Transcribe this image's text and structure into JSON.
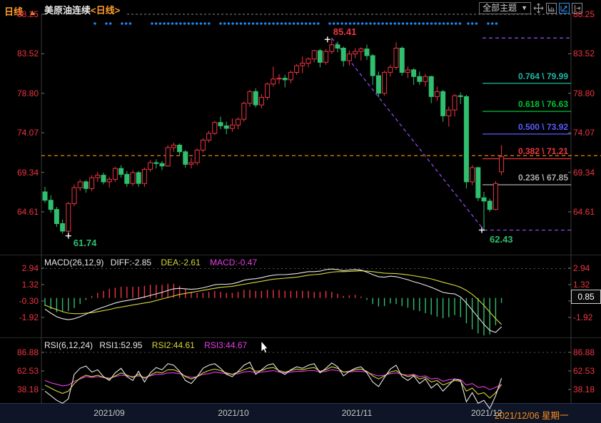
{
  "title": {
    "symbol": "美原油连续",
    "period": "<日线>"
  },
  "toolbar": {
    "themes_label": "全部主题",
    "dropdown_arrow": "▼",
    "icons": [
      "pan-icon",
      "axis-scale-icon",
      "chart-arrow-icon",
      "collapse-right-icon"
    ]
  },
  "indicators": {
    "macd_header": {
      "name": "MACD(26,12,9)",
      "diff": "DIFF:-2.85",
      "dea": "DEA:-2.61",
      "macd": "MACD:-0.47"
    },
    "rsi_header": {
      "name": "RSI(6,12,24)",
      "rsi1": "RSI1:52.95",
      "rsi2": "RSI2:44.61",
      "rsi3": "RSI3:44.67"
    },
    "macd_badge": "0.85"
  },
  "status_bar": {
    "period": "日线",
    "period_arrow": "▲",
    "months": [
      "2021/09",
      "2021/10",
      "2021/11",
      "2021/12"
    ],
    "current_date": "2021/12/06 星期一"
  },
  "annotations": {
    "peak_label": "85.41",
    "peak_price": 85.41,
    "peak_candle_index": 49,
    "low_left_label": "61.74",
    "low_left_price": 61.74,
    "low_left_candle_index": 4,
    "low_right_label": "62.43",
    "low_right_price": 62.43,
    "low_right_candle_index": 75
  },
  "colors": {
    "up": "#ef3541",
    "down": "#2fbf6e",
    "axis_text": "#ef3541",
    "diff_line": "#e8e8e8",
    "dea_line": "#d6d63c",
    "macd_text": "#ea3cea",
    "rsi1": "#e8e8e8",
    "rsi2": "#d6d63c",
    "rsi3": "#ea3cea",
    "price_line": "#ff9500",
    "fib_trend": "#9a4dff",
    "marker_dot": "#1e82e8"
  },
  "chart_data": {
    "type": "candlestick",
    "symbol": "美原油连续",
    "interval": "日线",
    "price_axis_ticks": [
      "88.25",
      "83.52",
      "78.80",
      "74.07",
      "69.34",
      "64.61"
    ],
    "macd_axis_ticks": [
      "2.94",
      "1.32",
      "-0.30",
      "-1.92"
    ],
    "rsi_axis_ticks": [
      "86.88",
      "62.53",
      "38.18"
    ],
    "current_price": 71.21,
    "fib_levels": [
      {
        "label": "0.764 \\ 79.99",
        "price": 79.99,
        "color": "#1fb5a3"
      },
      {
        "label": "0.618 \\ 76.63",
        "price": 76.63,
        "color": "#00c431"
      },
      {
        "label": "0.500 \\ 73.92",
        "price": 73.92,
        "color": "#5b5bff"
      },
      {
        "label": "0.382 \\ 71.21",
        "price": 71.21,
        "color": "#ef3541"
      },
      {
        "label": "0.236 \\ 67.85",
        "price": 67.85,
        "color": "#aaaaaa"
      }
    ],
    "marker_dot_ranges": [
      [
        133,
        133
      ],
      [
        149,
        156
      ],
      [
        171,
        186
      ],
      [
        213,
        297
      ],
      [
        309,
        450
      ],
      [
        462,
        650
      ],
      [
        656,
        669
      ],
      [
        684,
        698
      ]
    ],
    "candles": [
      [
        67.0,
        67.6,
        65.7,
        66.0
      ],
      [
        66.0,
        66.6,
        64.5,
        64.9
      ],
      [
        64.9,
        65.2,
        62.8,
        63.2
      ],
      [
        63.2,
        63.7,
        62.0,
        62.3
      ],
      [
        62.3,
        65.8,
        61.74,
        65.6
      ],
      [
        65.6,
        67.9,
        65.3,
        67.5
      ],
      [
        67.5,
        68.5,
        67.1,
        68.2
      ],
      [
        68.2,
        68.4,
        66.9,
        67.4
      ],
      [
        67.4,
        69.0,
        67.1,
        68.7
      ],
      [
        68.7,
        69.4,
        68.2,
        69.0
      ],
      [
        69.0,
        69.3,
        67.9,
        68.2
      ],
      [
        68.2,
        68.8,
        67.5,
        68.5
      ],
      [
        68.5,
        70.0,
        68.2,
        69.8
      ],
      [
        69.8,
        70.2,
        68.7,
        69.1
      ],
      [
        69.1,
        69.5,
        67.6,
        68.0
      ],
      [
        68.0,
        69.6,
        67.7,
        69.3
      ],
      [
        69.3,
        69.5,
        67.6,
        68.0
      ],
      [
        68.0,
        69.9,
        67.6,
        69.7
      ],
      [
        69.7,
        70.8,
        69.4,
        70.5
      ],
      [
        70.5,
        70.9,
        69.8,
        70.4
      ],
      [
        70.4,
        70.7,
        69.6,
        70.1
      ],
      [
        70.1,
        72.6,
        70.0,
        72.3
      ],
      [
        72.3,
        72.9,
        71.8,
        72.6
      ],
      [
        72.6,
        72.8,
        71.4,
        71.8
      ],
      [
        71.8,
        72.0,
        69.9,
        70.3
      ],
      [
        70.3,
        71.1,
        69.8,
        70.5
      ],
      [
        70.5,
        72.2,
        70.2,
        72.0
      ],
      [
        72.0,
        73.4,
        71.7,
        73.2
      ],
      [
        73.2,
        74.3,
        72.9,
        74.0
      ],
      [
        74.0,
        75.5,
        73.8,
        75.3
      ],
      [
        75.3,
        76.0,
        74.5,
        74.9
      ],
      [
        74.9,
        75.4,
        73.9,
        74.6
      ],
      [
        74.6,
        75.8,
        74.2,
        75.0
      ],
      [
        75.0,
        75.9,
        74.5,
        75.7
      ],
      [
        75.7,
        77.8,
        75.4,
        77.6
      ],
      [
        77.6,
        79.2,
        77.2,
        79.0
      ],
      [
        79.0,
        79.4,
        77.1,
        77.4
      ],
      [
        77.4,
        78.7,
        77.0,
        78.3
      ],
      [
        78.3,
        80.1,
        78.0,
        79.9
      ],
      [
        79.9,
        82.0,
        79.6,
        80.5
      ],
      [
        80.5,
        81.1,
        79.9,
        80.6
      ],
      [
        80.6,
        81.0,
        79.5,
        80.4
      ],
      [
        80.4,
        81.5,
        80.0,
        81.3
      ],
      [
        81.3,
        82.3,
        81.0,
        82.1
      ],
      [
        82.1,
        83.2,
        81.2,
        82.4
      ],
      [
        82.4,
        83.1,
        81.9,
        82.9
      ],
      [
        82.9,
        84.0,
        82.5,
        83.9
      ],
      [
        83.9,
        84.1,
        81.9,
        82.5
      ],
      [
        82.5,
        84.1,
        82.2,
        83.8
      ],
      [
        83.8,
        85.41,
        83.5,
        84.6
      ],
      [
        84.6,
        85.0,
        83.7,
        84.2
      ],
      [
        84.2,
        84.4,
        82.0,
        82.7
      ],
      [
        82.7,
        83.9,
        82.1,
        83.5
      ],
      [
        83.5,
        84.2,
        83.0,
        83.8
      ],
      [
        83.8,
        84.3,
        82.7,
        84.1
      ],
      [
        84.1,
        84.6,
        82.8,
        83.3
      ],
      [
        83.3,
        83.5,
        79.8,
        80.9
      ],
      [
        80.9,
        81.4,
        78.3,
        78.8
      ],
      [
        78.8,
        81.5,
        78.5,
        81.3
      ],
      [
        81.3,
        82.2,
        80.8,
        81.9
      ],
      [
        81.9,
        84.9,
        81.6,
        84.2
      ],
      [
        84.2,
        84.4,
        80.9,
        81.3
      ],
      [
        81.3,
        82.0,
        80.6,
        81.6
      ],
      [
        81.6,
        81.8,
        79.8,
        80.8
      ],
      [
        80.8,
        81.4,
        79.8,
        80.2
      ],
      [
        80.2,
        81.1,
        79.6,
        80.8
      ],
      [
        80.8,
        80.9,
        77.6,
        78.4
      ],
      [
        78.4,
        79.6,
        77.9,
        79.0
      ],
      [
        79.0,
        79.2,
        75.4,
        76.1
      ],
      [
        76.1,
        77.2,
        74.8,
        76.8
      ],
      [
        76.8,
        78.7,
        76.0,
        78.5
      ],
      [
        78.5,
        78.9,
        77.5,
        78.4
      ],
      [
        78.4,
        78.6,
        67.4,
        68.2
      ],
      [
        68.2,
        70.2,
        67.8,
        69.9
      ],
      [
        69.9,
        70.0,
        65.9,
        66.3
      ],
      [
        66.3,
        67.0,
        62.43,
        65.9
      ],
      [
        65.9,
        66.2,
        64.6,
        64.9
      ],
      [
        64.9,
        68.3,
        64.8,
        68.0
      ],
      [
        69.4,
        72.6,
        69.0,
        71.21
      ]
    ],
    "macd": {
      "diff": [
        -1.1,
        -1.5,
        -1.85,
        -2.05,
        -2.15,
        -2.05,
        -1.85,
        -1.6,
        -1.35,
        -1.1,
        -0.9,
        -0.7,
        -0.5,
        -0.35,
        -0.25,
        -0.15,
        -0.05,
        0.1,
        0.25,
        0.4,
        0.55,
        0.75,
        0.9,
        0.95,
        0.9,
        0.85,
        0.9,
        1.0,
        1.15,
        1.3,
        1.35,
        1.35,
        1.4,
        1.55,
        1.75,
        1.85,
        1.9,
        2.0,
        2.15,
        2.25,
        2.3,
        2.3,
        2.35,
        2.4,
        2.5,
        2.6,
        2.6,
        2.65,
        2.8,
        2.85,
        2.8,
        2.7,
        2.75,
        2.8,
        2.75,
        2.55,
        2.3,
        2.1,
        2.05,
        2.15,
        2.1,
        1.95,
        1.8,
        1.6,
        1.45,
        1.25,
        1.05,
        0.8,
        0.55,
        0.45,
        0.4,
        0.1,
        -0.5,
        -1.2,
        -1.9,
        -2.6,
        -3.2,
        -3.4,
        -2.85
      ],
      "dea": [
        -0.7,
        -0.95,
        -1.15,
        -1.35,
        -1.5,
        -1.55,
        -1.55,
        -1.5,
        -1.45,
        -1.35,
        -1.25,
        -1.15,
        -1.0,
        -0.9,
        -0.8,
        -0.7,
        -0.6,
        -0.5,
        -0.4,
        -0.25,
        -0.1,
        0.05,
        0.2,
        0.35,
        0.45,
        0.55,
        0.65,
        0.75,
        0.85,
        0.95,
        1.05,
        1.1,
        1.15,
        1.25,
        1.35,
        1.45,
        1.55,
        1.65,
        1.75,
        1.85,
        1.9,
        1.95,
        2.0,
        2.05,
        2.15,
        2.25,
        2.3,
        2.35,
        2.45,
        2.55,
        2.6,
        2.6,
        2.62,
        2.65,
        2.68,
        2.65,
        2.6,
        2.52,
        2.45,
        2.42,
        2.4,
        2.35,
        2.28,
        2.2,
        2.1,
        2.0,
        1.88,
        1.72,
        1.55,
        1.4,
        1.25,
        1.05,
        0.75,
        0.35,
        -0.15,
        -0.75,
        -1.4,
        -2.05,
        -2.61
      ]
    },
    "rsi": {
      "rsi1": [
        36,
        30,
        24,
        20,
        26,
        58,
        66,
        69,
        61,
        64,
        55,
        50,
        60,
        66,
        55,
        50,
        62,
        48,
        60,
        67,
        64,
        72,
        70,
        62,
        50,
        46,
        55,
        66,
        70,
        72,
        66,
        58,
        55,
        62,
        70,
        74,
        58,
        64,
        70,
        72,
        62,
        58,
        64,
        68,
        66,
        70,
        72,
        60,
        66,
        73,
        68,
        56,
        62,
        66,
        68,
        60,
        48,
        42,
        54,
        65,
        70,
        55,
        50,
        56,
        46,
        52,
        40,
        46,
        36,
        44,
        52,
        50,
        22,
        34,
        20,
        24,
        13,
        30,
        52.95
      ],
      "rsi2": [
        44,
        40,
        36,
        33,
        36,
        46,
        53,
        57,
        55,
        57,
        54,
        52,
        56,
        60,
        57,
        54,
        58,
        53,
        57,
        61,
        60,
        64,
        64,
        61,
        55,
        52,
        55,
        60,
        63,
        65,
        63,
        60,
        58,
        61,
        64,
        67,
        62,
        63,
        66,
        67,
        63,
        61,
        63,
        65,
        64,
        66,
        67,
        62,
        64,
        68,
        66,
        61,
        62,
        64,
        65,
        62,
        56,
        52,
        56,
        61,
        63,
        58,
        55,
        57,
        52,
        54,
        48,
        50,
        44,
        47,
        50,
        49,
        36,
        40,
        32,
        34,
        27,
        34,
        44.61
      ],
      "rsi3": [
        50,
        47,
        45,
        43,
        44,
        49,
        52,
        55,
        54,
        55,
        54,
        53,
        55,
        57,
        56,
        55,
        56,
        54,
        56,
        58,
        58,
        60,
        60,
        59,
        56,
        54,
        55,
        58,
        59,
        61,
        60,
        59,
        58,
        59,
        61,
        62,
        60,
        61,
        62,
        63,
        61,
        60,
        61,
        62,
        62,
        63,
        63,
        61,
        62,
        64,
        63,
        61,
        61,
        62,
        62,
        61,
        58,
        56,
        57,
        59,
        60,
        58,
        57,
        58,
        55,
        56,
        52,
        53,
        49,
        51,
        52,
        51,
        44,
        46,
        41,
        42,
        38,
        41,
        44.67
      ]
    }
  }
}
